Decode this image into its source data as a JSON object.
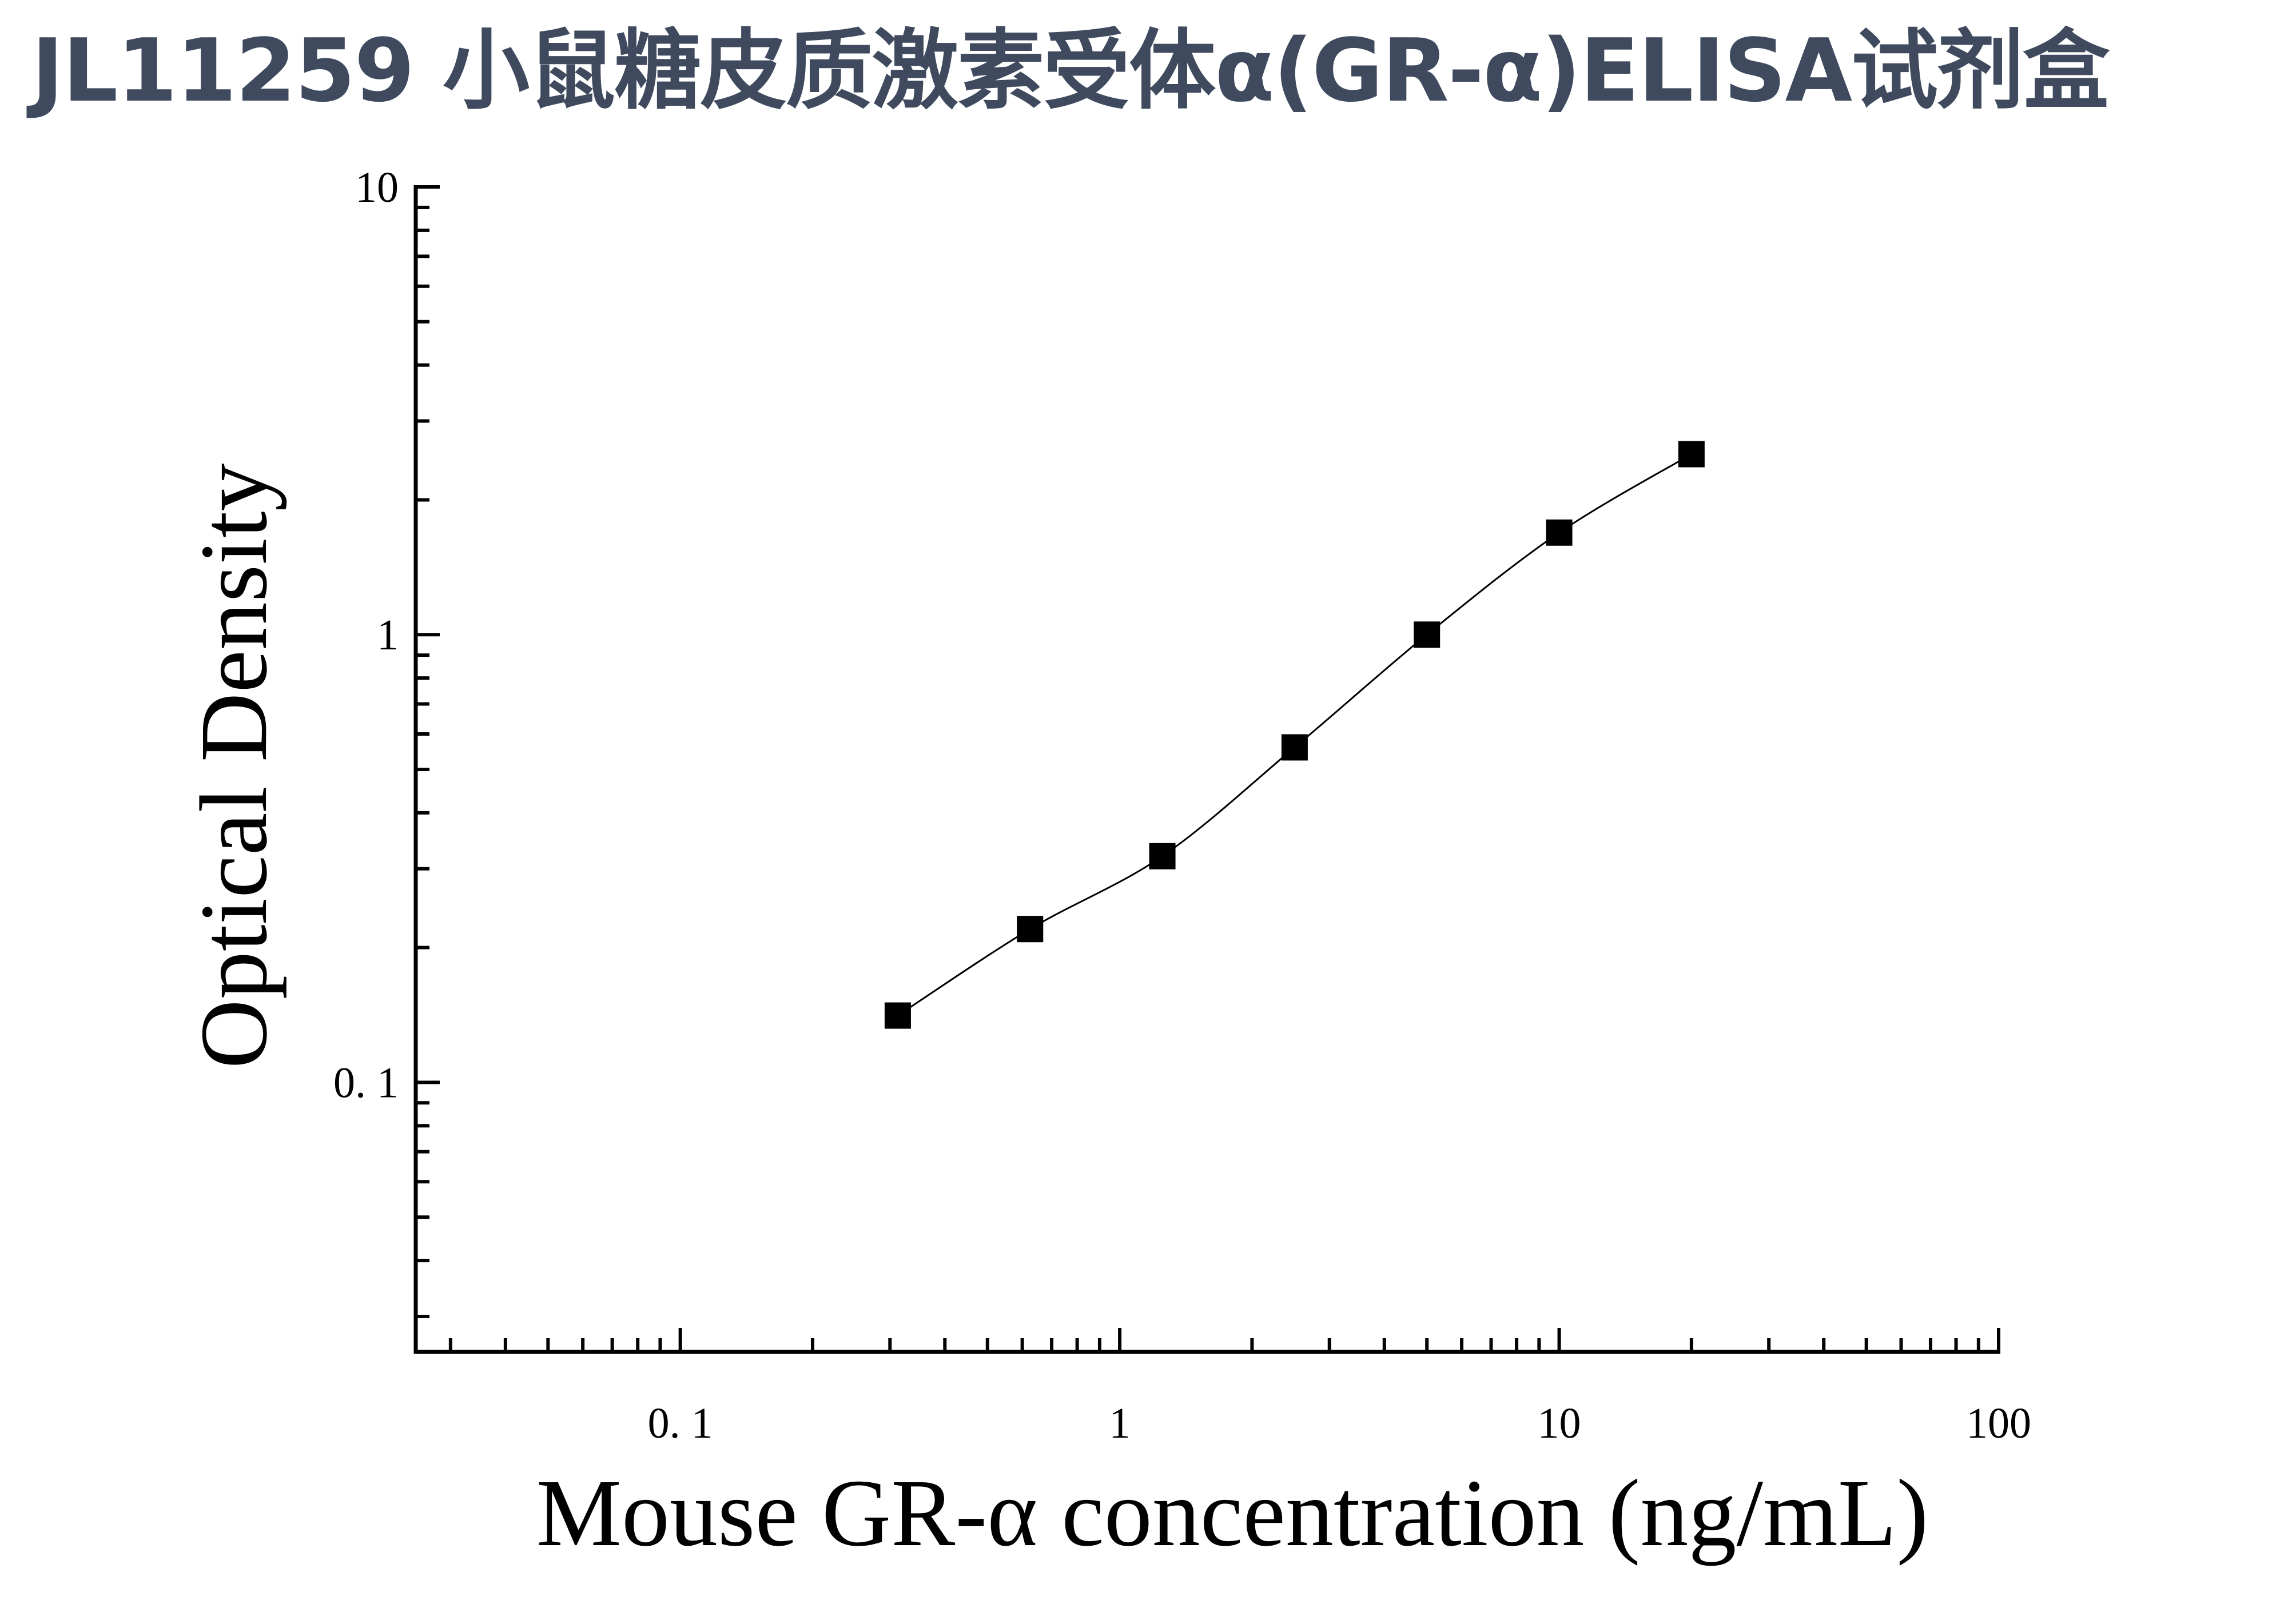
{
  "title": "JL11259 小鼠糖皮质激素受体α(GR-α)ELISA试剂盒",
  "chart_data": {
    "type": "scatter",
    "title": "JL11259 小鼠糖皮质激素受体α(GR-α)ELISA试剂盒",
    "xlabel": "Mouse GR-α concentration (ng/mL)",
    "ylabel": "Optical Density",
    "x_scale": "log",
    "y_scale": "log",
    "xlim": [
      0.025,
      100
    ],
    "ylim": [
      0.025,
      10
    ],
    "x_ticks": [
      0.1,
      1,
      10,
      100
    ],
    "x_tick_labels": [
      "0. 1",
      "1",
      "10",
      "100"
    ],
    "y_ticks": [
      0.1,
      1,
      10
    ],
    "y_tick_labels": [
      "0. 1",
      "1",
      "10"
    ],
    "grid": false,
    "legend": "none",
    "series": [
      {
        "marker": "square",
        "color": "#000000",
        "fit_line": true,
        "x": [
          0.3125,
          0.625,
          1.25,
          2.5,
          5,
          10,
          20
        ],
        "y": [
          0.141,
          0.22,
          0.32,
          0.56,
          1.0,
          1.69,
          2.53
        ]
      }
    ]
  }
}
